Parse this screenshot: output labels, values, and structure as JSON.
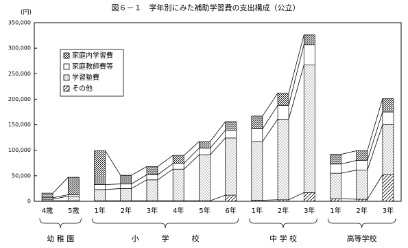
{
  "chart_data": {
    "type": "stacked-bar",
    "title": "図６－１　学年別にみた補助学習費の支出構成（公立）",
    "unit": "(円)",
    "groups": [
      {
        "label": "幼 稚 園",
        "categories": [
          "4歳",
          "5歳"
        ]
      },
      {
        "label": "小　　　学　　　校",
        "categories": [
          "1年",
          "2年",
          "3年",
          "4年",
          "5年",
          "6年"
        ]
      },
      {
        "label": "中 学 校",
        "categories": [
          "1年",
          "2年",
          "3年"
        ]
      },
      {
        "label": "高等学校",
        "categories": [
          "1年",
          "2年",
          "3年"
        ]
      }
    ],
    "series": [
      {
        "name": "その他",
        "values": [
          1000,
          1000,
          1000,
          1000,
          1000,
          1000,
          1000,
          12000,
          2000,
          3000,
          17000,
          5000,
          4000,
          52000
        ]
      },
      {
        "name": "学習塾費",
        "values": [
          3000,
          9000,
          22000,
          24000,
          41000,
          62000,
          90000,
          112000,
          115000,
          158000,
          250000,
          50000,
          57000,
          98000
        ]
      },
      {
        "name": "家庭教師費等",
        "values": [
          3000,
          3000,
          10000,
          9000,
          10000,
          11000,
          13000,
          15000,
          25000,
          27000,
          40000,
          18000,
          19000,
          25000
        ]
      },
      {
        "name": "家庭内学習費",
        "values": [
          9000,
          34000,
          66000,
          17000,
          16000,
          16000,
          13000,
          17000,
          25000,
          24000,
          19000,
          19000,
          19000,
          26000
        ]
      }
    ],
    "ylim": [
      0,
      350000
    ],
    "yticks": [
      0,
      {
        "value": 50000,
        "label": "50,000"
      },
      {
        "value": 100000,
        "label": "100,000"
      },
      {
        "value": 150000,
        "label": "150,000"
      },
      {
        "value": 200000,
        "label": "200,000"
      },
      {
        "value": 250000,
        "label": "250,000"
      },
      {
        "value": 300000,
        "label": "300,000"
      },
      {
        "value": 350000,
        "label": "350,000"
      }
    ]
  }
}
